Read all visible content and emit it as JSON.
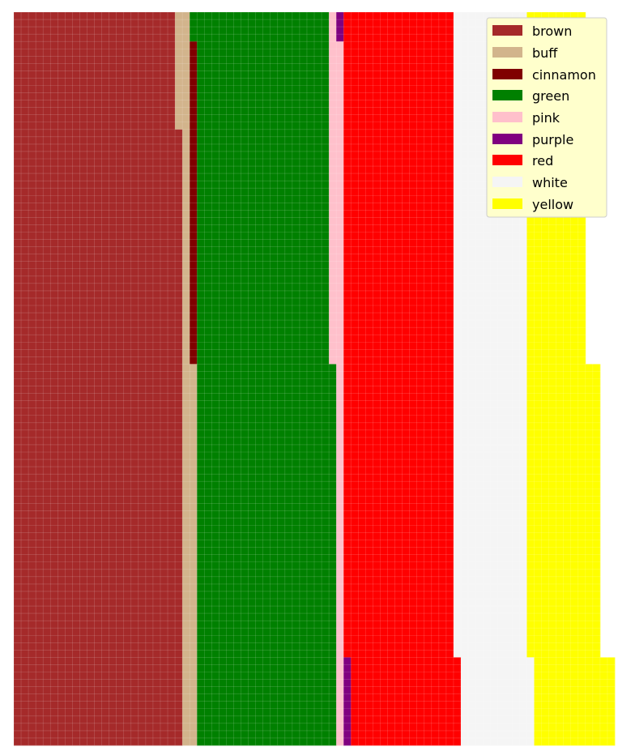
{
  "chart_data": {
    "type": "heatmap",
    "title": "",
    "xlabel": "",
    "ylabel": "",
    "grid": true,
    "legend": {
      "placement": "top-right",
      "entries": [
        {
          "label": "brown",
          "color": "#A52A2A"
        },
        {
          "label": "buff",
          "color": "#D2B48C"
        },
        {
          "label": "cinnamon",
          "color": "#800000"
        },
        {
          "label": "green",
          "color": "#008000"
        },
        {
          "label": "pink",
          "color": "#FFC0CB"
        },
        {
          "label": "purple",
          "color": "#800080"
        },
        {
          "label": "red",
          "color": "#FF0000"
        },
        {
          "label": "white",
          "color": "#F5F5F5"
        },
        {
          "label": "yellow",
          "color": "#FFFF00"
        }
      ]
    },
    "grid_size": {
      "columns": 82,
      "rows": 100
    },
    "segment_order": [
      "brown",
      "buff",
      "cinnamon",
      "green",
      "pink",
      "purple",
      "red",
      "white",
      "yellow"
    ],
    "row_blocks": [
      {
        "rows": 4,
        "counts": {
          "brown": 22,
          "buff": 2,
          "cinnamon": 0,
          "green": 19,
          "pink": 1,
          "purple": 1,
          "red": 15,
          "white": 10,
          "yellow": 8
        }
      },
      {
        "rows": 12,
        "counts": {
          "brown": 22,
          "buff": 2,
          "cinnamon": 1,
          "green": 18,
          "pink": 2,
          "purple": 0,
          "red": 15,
          "white": 10,
          "yellow": 8
        }
      },
      {
        "rows": 32,
        "counts": {
          "brown": 23,
          "buff": 1,
          "cinnamon": 1,
          "green": 18,
          "pink": 2,
          "purple": 0,
          "red": 15,
          "white": 10,
          "yellow": 8
        }
      },
      {
        "rows": 28,
        "counts": {
          "brown": 23,
          "buff": 2,
          "cinnamon": 0,
          "green": 19,
          "pink": 1,
          "purple": 0,
          "red": 15,
          "white": 10,
          "yellow": 10
        }
      },
      {
        "rows": 12,
        "counts": {
          "brown": 23,
          "buff": 2,
          "cinnamon": 0,
          "green": 19,
          "pink": 1,
          "purple": 0,
          "red": 15,
          "white": 10,
          "yellow": 10
        }
      },
      {
        "rows": 12,
        "counts": {
          "brown": 23,
          "buff": 2,
          "cinnamon": 0,
          "green": 19,
          "pink": 1,
          "purple": 1,
          "red": 15,
          "white": 10,
          "yellow": 11
        }
      }
    ]
  }
}
